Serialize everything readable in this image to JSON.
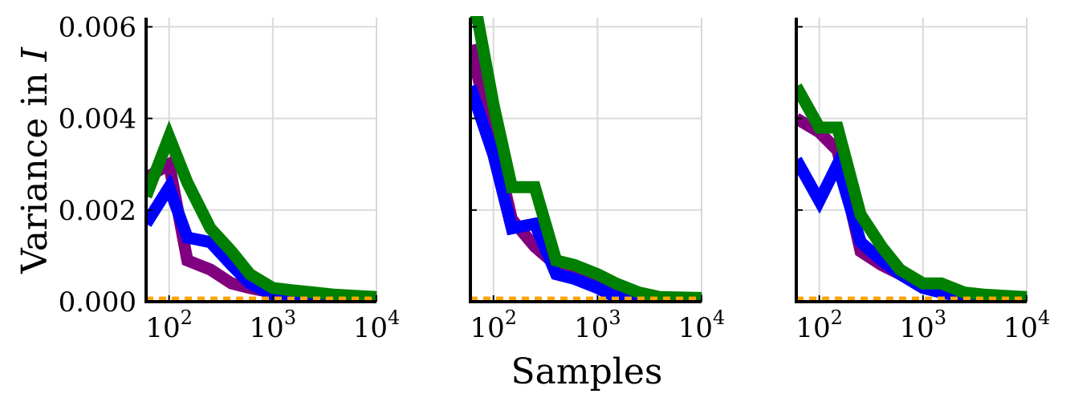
{
  "figure": {
    "xlabel": "Samples",
    "ylabel_prefix": "Variance in ",
    "ylabel_symbol": "I"
  },
  "colors": {
    "grid": "#d9d9d9",
    "axis": "#000000",
    "baseline": "#ffa500"
  },
  "chart_data": [
    {
      "type": "line",
      "x_scale": "log",
      "xlim": [
        60,
        10000
      ],
      "ylim": [
        0,
        0.0062
      ],
      "x_ticks": [
        {
          "value": 100,
          "base": "10",
          "exp": "2"
        },
        {
          "value": 1000,
          "base": "10",
          "exp": "3"
        },
        {
          "value": 10000,
          "base": "10",
          "exp": "4"
        }
      ],
      "y_ticks": [
        0,
        0.002,
        0.004,
        0.006
      ],
      "y_tick_labels": [
        "0.000",
        "0.002",
        "0.004",
        "0.006"
      ],
      "grid": true,
      "series": [
        {
          "color": "#800080",
          "x": [
            60,
            100,
            150,
            250,
            400,
            600,
            1000,
            1500,
            2500,
            4000,
            10000
          ],
          "y": [
            0.0027,
            0.003,
            0.0009,
            0.0007,
            0.0004,
            0.0003,
            0.0002,
            0.0001,
            0.0001,
            8e-05,
            5e-05
          ]
        },
        {
          "color": "#0000ff",
          "x": [
            60,
            100,
            150,
            250,
            400,
            600,
            1000,
            1500,
            2500,
            4000,
            10000
          ],
          "y": [
            0.0017,
            0.0025,
            0.0014,
            0.0013,
            0.0008,
            0.0004,
            0.00015,
            0.0001,
            0.0001,
            8e-05,
            5e-05
          ]
        },
        {
          "color": "#008000",
          "x": [
            60,
            100,
            150,
            250,
            400,
            600,
            1000,
            1500,
            2500,
            4000,
            10000
          ],
          "y": [
            0.0023,
            0.0036,
            0.0026,
            0.0016,
            0.0011,
            0.0006,
            0.0003,
            0.00025,
            0.0002,
            0.00015,
            0.0001
          ]
        },
        {
          "color": "#ffa500",
          "dashed": true,
          "x": [
            60,
            10000
          ],
          "y": [
            5e-05,
            5e-05
          ]
        }
      ]
    },
    {
      "type": "line",
      "x_scale": "log",
      "xlim": [
        60,
        10000
      ],
      "ylim": [
        0,
        0.0062
      ],
      "x_ticks": [
        {
          "value": 100,
          "base": "10",
          "exp": "2"
        },
        {
          "value": 1000,
          "base": "10",
          "exp": "3"
        },
        {
          "value": 10000,
          "base": "10",
          "exp": "4"
        }
      ],
      "y_ticks": [
        0,
        0.002,
        0.004,
        0.006
      ],
      "y_tick_labels": [],
      "grid": true,
      "series": [
        {
          "color": "#800080",
          "x": [
            60,
            100,
            150,
            250,
            400,
            600,
            1000,
            1500,
            2500,
            4000,
            10000
          ],
          "y": [
            0.0056,
            0.0035,
            0.0018,
            0.0012,
            0.0008,
            0.0006,
            0.0004,
            0.0002,
            0.0001,
            8e-05,
            5e-05
          ]
        },
        {
          "color": "#0000ff",
          "x": [
            60,
            100,
            150,
            250,
            400,
            600,
            1000,
            1500,
            2500,
            4000,
            10000
          ],
          "y": [
            0.0047,
            0.0032,
            0.0016,
            0.0017,
            0.0006,
            0.0005,
            0.0003,
            0.0001,
            0.0001,
            8e-05,
            5e-05
          ]
        },
        {
          "color": "#008000",
          "x": [
            60,
            70,
            100,
            150,
            250,
            400,
            600,
            1000,
            1500,
            2500,
            4000,
            10000
          ],
          "y": [
            0.0062,
            0.0062,
            0.0043,
            0.0025,
            0.0025,
            0.0009,
            0.0008,
            0.0006,
            0.0004,
            0.0002,
            0.0001,
            8e-05
          ]
        },
        {
          "color": "#ffa500",
          "dashed": true,
          "x": [
            60,
            10000
          ],
          "y": [
            5e-05,
            5e-05
          ]
        }
      ]
    },
    {
      "type": "line",
      "x_scale": "log",
      "xlim": [
        60,
        10000
      ],
      "ylim": [
        0,
        0.0062
      ],
      "x_ticks": [
        {
          "value": 100,
          "base": "10",
          "exp": "2"
        },
        {
          "value": 1000,
          "base": "10",
          "exp": "3"
        },
        {
          "value": 10000,
          "base": "10",
          "exp": "4"
        }
      ],
      "y_ticks": [
        0,
        0.002,
        0.004,
        0.006
      ],
      "y_tick_labels": [],
      "grid": true,
      "series": [
        {
          "color": "#800080",
          "x": [
            60,
            100,
            150,
            250,
            400,
            600,
            1000,
            1500,
            2500,
            4000,
            10000
          ],
          "y": [
            0.004,
            0.0037,
            0.0033,
            0.0011,
            0.0008,
            0.0006,
            0.0004,
            0.0002,
            0.00015,
            0.0001,
            5e-05
          ]
        },
        {
          "color": "#0000ff",
          "x": [
            60,
            100,
            150,
            250,
            400,
            600,
            1000,
            1500,
            2500,
            4000,
            10000
          ],
          "y": [
            0.0031,
            0.0022,
            0.003,
            0.0013,
            0.0009,
            0.0006,
            0.0003,
            0.0002,
            0.0001,
            8e-05,
            5e-05
          ]
        },
        {
          "color": "#008000",
          "x": [
            60,
            100,
            150,
            250,
            400,
            600,
            1000,
            1500,
            2500,
            4000,
            10000
          ],
          "y": [
            0.0047,
            0.0038,
            0.0038,
            0.0019,
            0.0012,
            0.0007,
            0.0004,
            0.0004,
            0.0002,
            0.00015,
            0.0001
          ]
        },
        {
          "color": "#ffa500",
          "dashed": true,
          "x": [
            60,
            10000
          ],
          "y": [
            5e-05,
            5e-05
          ]
        }
      ]
    }
  ]
}
